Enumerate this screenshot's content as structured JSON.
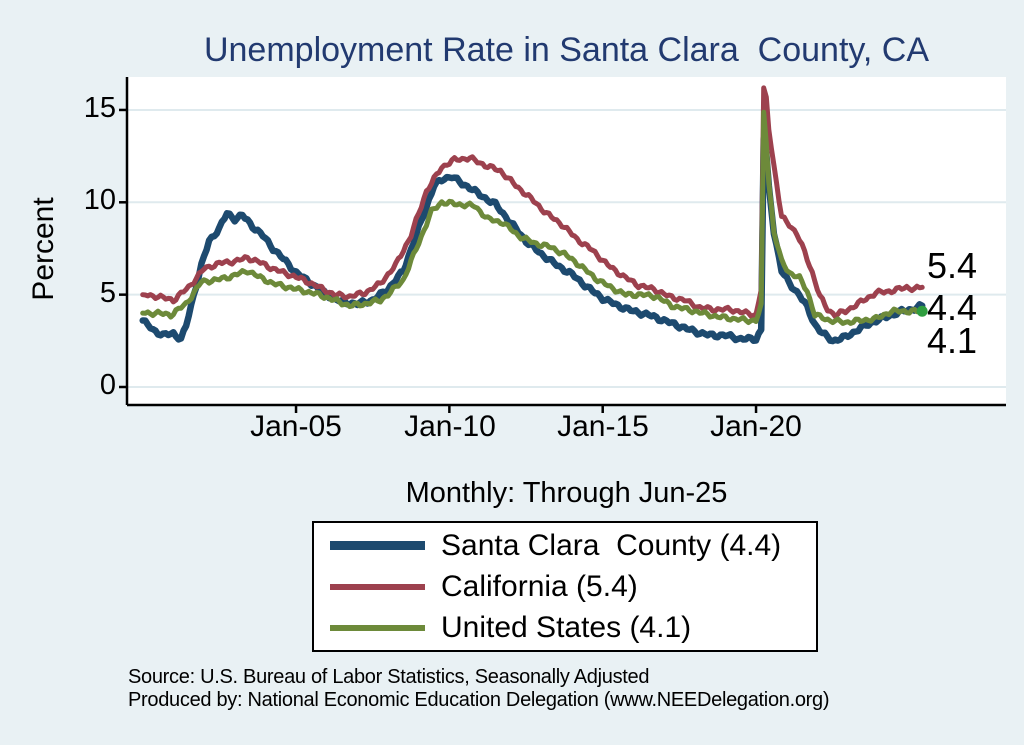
{
  "colors": {
    "background": "#e9f1f4",
    "plot_background": "#ffffff",
    "title_text": "#223a70",
    "gridline": "#dfeaee",
    "axis": "#000000",
    "santa_clara_line": "#1d4a6f",
    "california_line": "#9d414e",
    "united_states_line": "#6d8a3a",
    "end_marker_dot": "#2f9e3f"
  },
  "source_note": {
    "line1": "Source: U.S. Bureau of Labor Statistics, Seasonally Adjusted",
    "line2": "Produced by: National Economic Education Delegation (www.NEEDelegation.org)"
  },
  "chart_data": {
    "type": "line",
    "title": "Unemployment Rate in Santa Clara  County, CA",
    "subtitle": "Monthly: Through Jun-25",
    "ylabel": "Percent",
    "frequency": "monthly",
    "x_start": "2000-01",
    "x_end": "2025-06",
    "grid": "horizontal",
    "legend_position": "bottom-center-box",
    "y_ticks": [
      0,
      5,
      10,
      15
    ],
    "y_tick_labels": [
      "15",
      "10",
      "5",
      "0"
    ],
    "ylim": [
      -1,
      16.8
    ],
    "x_tick_labels": [
      "Jan-05",
      "Jan-10",
      "Jan-15",
      "Jan-20"
    ],
    "x_tick_years": [
      2005,
      2010,
      2015,
      2020
    ],
    "xlim_years": [
      1999.85,
      2025.9
    ],
    "end_labels": [
      {
        "text": "5.4",
        "series": "California"
      },
      {
        "text": "4.4",
        "series": "Santa Clara  County"
      },
      {
        "text": "4.1",
        "series": "United States"
      }
    ],
    "series": [
      {
        "name": "Santa Clara  County",
        "legend": "Santa Clara  County (4.4)",
        "last_value": 4.4,
        "color": "#1d4a6f",
        "line_width": 6.5,
        "anchors": [
          [
            "2000-01",
            3.6
          ],
          [
            "2000-05",
            3.1
          ],
          [
            "2000-09",
            2.8
          ],
          [
            "2001-01",
            2.9
          ],
          [
            "2001-04",
            2.6
          ],
          [
            "2001-06",
            3.3
          ],
          [
            "2001-09",
            5.0
          ],
          [
            "2001-12",
            6.6
          ],
          [
            "2002-03",
            7.9
          ],
          [
            "2002-07",
            8.6
          ],
          [
            "2002-10",
            9.4
          ],
          [
            "2003-01",
            9.1
          ],
          [
            "2003-04",
            9.3
          ],
          [
            "2003-08",
            8.7
          ],
          [
            "2003-12",
            8.2
          ],
          [
            "2004-04",
            7.5
          ],
          [
            "2004-09",
            6.8
          ],
          [
            "2005-01",
            6.2
          ],
          [
            "2005-07",
            5.6
          ],
          [
            "2006-01",
            5.0
          ],
          [
            "2006-07",
            4.6
          ],
          [
            "2007-01",
            4.5
          ],
          [
            "2007-07",
            4.7
          ],
          [
            "2008-01",
            5.3
          ],
          [
            "2008-07",
            6.3
          ],
          [
            "2009-01",
            8.6
          ],
          [
            "2009-07",
            10.9
          ],
          [
            "2009-11",
            11.3
          ],
          [
            "2010-02",
            11.4
          ],
          [
            "2010-06",
            11.0
          ],
          [
            "2010-09",
            10.8
          ],
          [
            "2011-01",
            10.4
          ],
          [
            "2011-07",
            9.9
          ],
          [
            "2012-01",
            8.9
          ],
          [
            "2012-07",
            7.9
          ],
          [
            "2013-01",
            7.2
          ],
          [
            "2013-07",
            6.6
          ],
          [
            "2014-01",
            6.1
          ],
          [
            "2014-07",
            5.4
          ],
          [
            "2015-01",
            4.8
          ],
          [
            "2015-07",
            4.4
          ],
          [
            "2016-01",
            4.1
          ],
          [
            "2016-07",
            3.9
          ],
          [
            "2017-01",
            3.6
          ],
          [
            "2017-07",
            3.3
          ],
          [
            "2018-01",
            3.0
          ],
          [
            "2018-07",
            2.8
          ],
          [
            "2019-01",
            2.8
          ],
          [
            "2019-07",
            2.6
          ],
          [
            "2020-01",
            2.6
          ],
          [
            "2020-03",
            3.1
          ],
          [
            "2020-04",
            13.5
          ],
          [
            "2020-05",
            12.6
          ],
          [
            "2020-06",
            10.8
          ],
          [
            "2020-08",
            8.4
          ],
          [
            "2020-11",
            6.3
          ],
          [
            "2021-02",
            5.6
          ],
          [
            "2021-06",
            5.0
          ],
          [
            "2021-09",
            4.3
          ],
          [
            "2021-12",
            3.4
          ],
          [
            "2022-03",
            2.9
          ],
          [
            "2022-07",
            2.5
          ],
          [
            "2022-12",
            2.7
          ],
          [
            "2023-06",
            3.2
          ],
          [
            "2023-12",
            3.6
          ],
          [
            "2024-06",
            3.9
          ],
          [
            "2024-10",
            4.1
          ],
          [
            "2025-02",
            4.2
          ],
          [
            "2025-06",
            4.4
          ]
        ]
      },
      {
        "name": "California",
        "legend": "California (5.4)",
        "last_value": 5.4,
        "color": "#9d414e",
        "line_width": 5,
        "anchors": [
          [
            "2000-01",
            5.0
          ],
          [
            "2000-07",
            4.9
          ],
          [
            "2001-01",
            4.7
          ],
          [
            "2001-07",
            5.4
          ],
          [
            "2002-01",
            6.4
          ],
          [
            "2002-07",
            6.7
          ],
          [
            "2003-01",
            6.8
          ],
          [
            "2003-06",
            7.0
          ],
          [
            "2003-10",
            6.8
          ],
          [
            "2004-04",
            6.4
          ],
          [
            "2004-10",
            6.1
          ],
          [
            "2005-04",
            5.8
          ],
          [
            "2005-10",
            5.4
          ],
          [
            "2006-04",
            5.0
          ],
          [
            "2006-10",
            4.9
          ],
          [
            "2007-04",
            5.1
          ],
          [
            "2007-10",
            5.6
          ],
          [
            "2008-04",
            6.6
          ],
          [
            "2008-10",
            8.2
          ],
          [
            "2009-04",
            10.6
          ],
          [
            "2009-10",
            11.9
          ],
          [
            "2010-03",
            12.3
          ],
          [
            "2010-09",
            12.4
          ],
          [
            "2011-03",
            12.0
          ],
          [
            "2011-09",
            11.7
          ],
          [
            "2012-03",
            10.9
          ],
          [
            "2012-09",
            10.2
          ],
          [
            "2013-03",
            9.4
          ],
          [
            "2013-09",
            8.8
          ],
          [
            "2014-03",
            8.0
          ],
          [
            "2014-09",
            7.4
          ],
          [
            "2015-03",
            6.6
          ],
          [
            "2015-09",
            6.0
          ],
          [
            "2016-03",
            5.5
          ],
          [
            "2016-09",
            5.3
          ],
          [
            "2017-03",
            4.9
          ],
          [
            "2017-09",
            4.7
          ],
          [
            "2018-03",
            4.3
          ],
          [
            "2018-09",
            4.2
          ],
          [
            "2019-03",
            4.2
          ],
          [
            "2019-09",
            4.0
          ],
          [
            "2020-01",
            3.9
          ],
          [
            "2020-03",
            5.3
          ],
          [
            "2020-04",
            16.1
          ],
          [
            "2020-05",
            15.6
          ],
          [
            "2020-06",
            14.0
          ],
          [
            "2020-08",
            12.0
          ],
          [
            "2020-11",
            9.2
          ],
          [
            "2021-02",
            8.8
          ],
          [
            "2021-05",
            8.3
          ],
          [
            "2021-08",
            7.3
          ],
          [
            "2021-11",
            6.2
          ],
          [
            "2022-02",
            4.9
          ],
          [
            "2022-05",
            4.2
          ],
          [
            "2022-08",
            3.9
          ],
          [
            "2022-12",
            4.1
          ],
          [
            "2023-06",
            4.6
          ],
          [
            "2023-12",
            5.1
          ],
          [
            "2024-06",
            5.2
          ],
          [
            "2024-12",
            5.4
          ],
          [
            "2025-03",
            5.3
          ],
          [
            "2025-06",
            5.4
          ]
        ]
      },
      {
        "name": "United States",
        "legend": "United States (4.1)",
        "last_value": 4.1,
        "color": "#6d8a3a",
        "line_width": 5,
        "end_dot_color": "#2f9e3f",
        "anchors": [
          [
            "2000-01",
            4.0
          ],
          [
            "2000-07",
            4.0
          ],
          [
            "2000-12",
            3.9
          ],
          [
            "2001-06",
            4.5
          ],
          [
            "2001-12",
            5.7
          ],
          [
            "2002-06",
            5.8
          ],
          [
            "2002-12",
            6.0
          ],
          [
            "2003-06",
            6.3
          ],
          [
            "2003-10",
            6.0
          ],
          [
            "2004-04",
            5.6
          ],
          [
            "2004-10",
            5.4
          ],
          [
            "2005-04",
            5.2
          ],
          [
            "2005-10",
            5.0
          ],
          [
            "2006-04",
            4.7
          ],
          [
            "2006-10",
            4.4
          ],
          [
            "2007-04",
            4.5
          ],
          [
            "2007-10",
            4.7
          ],
          [
            "2008-01",
            5.0
          ],
          [
            "2008-07",
            5.8
          ],
          [
            "2009-01",
            7.8
          ],
          [
            "2009-06",
            9.5
          ],
          [
            "2009-10",
            10.0
          ],
          [
            "2010-04",
            9.9
          ],
          [
            "2010-11",
            9.8
          ],
          [
            "2011-04",
            9.1
          ],
          [
            "2011-10",
            8.9
          ],
          [
            "2012-04",
            8.2
          ],
          [
            "2012-10",
            7.8
          ],
          [
            "2013-04",
            7.6
          ],
          [
            "2013-10",
            7.2
          ],
          [
            "2014-04",
            6.6
          ],
          [
            "2014-10",
            5.9
          ],
          [
            "2015-04",
            5.4
          ],
          [
            "2015-10",
            5.0
          ],
          [
            "2016-04",
            5.0
          ],
          [
            "2016-10",
            4.9
          ],
          [
            "2017-04",
            4.4
          ],
          [
            "2017-10",
            4.2
          ],
          [
            "2018-04",
            4.0
          ],
          [
            "2018-10",
            3.8
          ],
          [
            "2019-04",
            3.7
          ],
          [
            "2019-10",
            3.6
          ],
          [
            "2020-01",
            3.6
          ],
          [
            "2020-03",
            4.4
          ],
          [
            "2020-04",
            14.8
          ],
          [
            "2020-05",
            13.3
          ],
          [
            "2020-06",
            11.1
          ],
          [
            "2020-08",
            8.4
          ],
          [
            "2020-11",
            6.8
          ],
          [
            "2021-02",
            6.2
          ],
          [
            "2021-06",
            5.9
          ],
          [
            "2021-09",
            5.2
          ],
          [
            "2021-12",
            3.9
          ],
          [
            "2022-06",
            3.6
          ],
          [
            "2022-12",
            3.5
          ],
          [
            "2023-06",
            3.6
          ],
          [
            "2023-12",
            3.7
          ],
          [
            "2024-06",
            4.1
          ],
          [
            "2024-12",
            4.1
          ],
          [
            "2025-06",
            4.1
          ]
        ]
      }
    ]
  }
}
